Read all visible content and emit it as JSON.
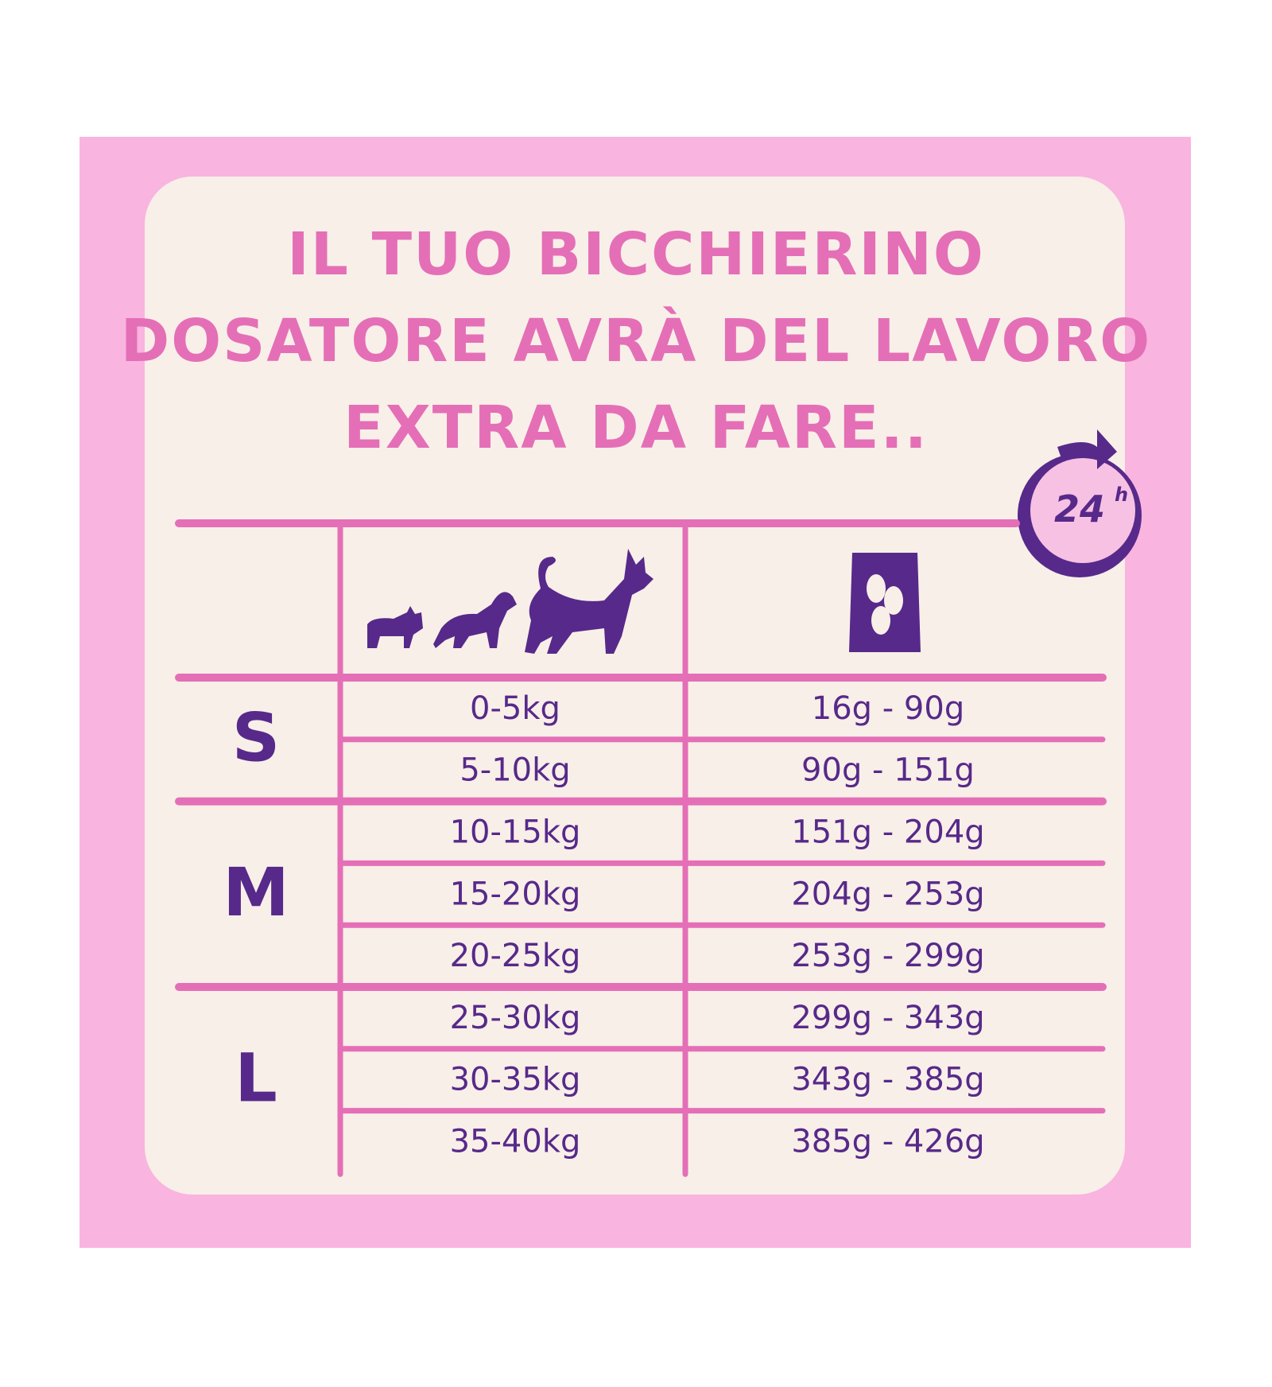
{
  "title": [
    "IL TUO BICCHIERINO",
    "DOSATORE AVRÀ DEL LAVORO",
    "EXTRA DA FARE.."
  ],
  "badge": {
    "number": "24",
    "unit": "h"
  },
  "table": {
    "groups": [
      {
        "size": "S",
        "rows": [
          [
            "0-5kg",
            "16g - 90g"
          ],
          [
            "5-10kg",
            "90g - 151g"
          ]
        ]
      },
      {
        "size": "M",
        "rows": [
          [
            "10-15kg",
            "151g - 204g"
          ],
          [
            "15-20kg",
            "204g - 253g"
          ],
          [
            "20-25kg",
            "253g - 299g"
          ]
        ]
      },
      {
        "size": "L",
        "rows": [
          [
            "25-30kg",
            "299g - 343g"
          ],
          [
            "30-35kg",
            "343g - 385g"
          ],
          [
            "35-40kg",
            "385g - 426g"
          ]
        ]
      }
    ]
  }
}
